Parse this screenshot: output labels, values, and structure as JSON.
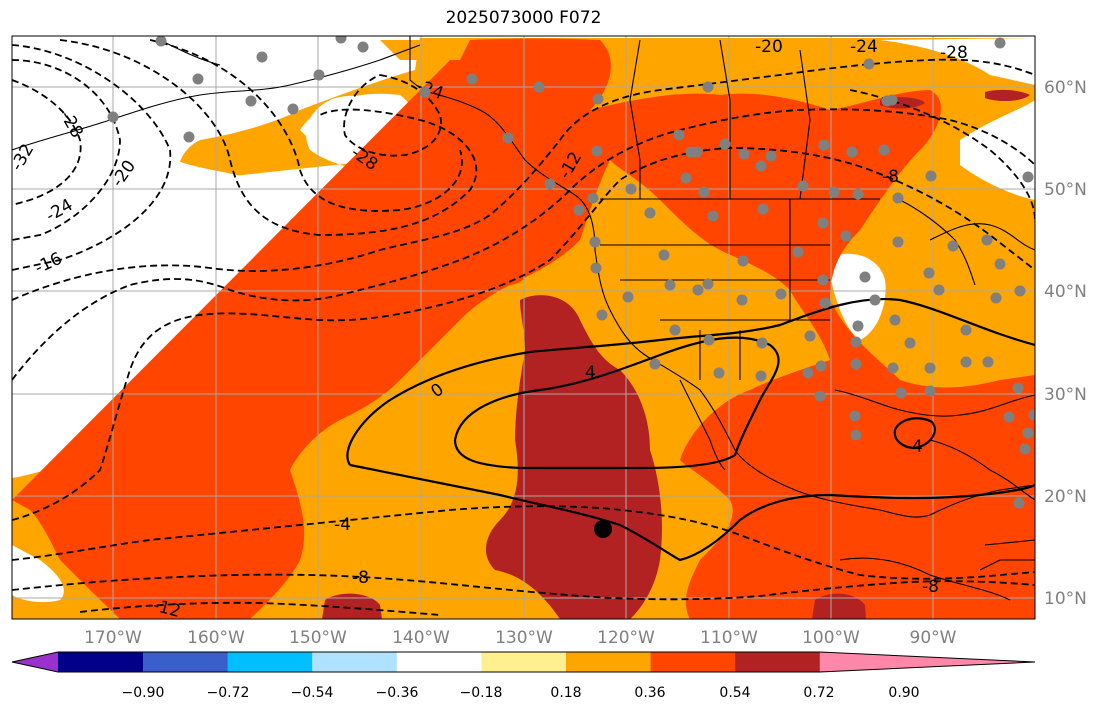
{
  "title": "2025073000 F072",
  "colors": {
    "ocean_bg": "#ffffff",
    "level_036_054": "#ffa500",
    "level_054_072": "#ff4500",
    "level_072_090": "#b22222",
    "grid": "#a9a9a9",
    "contour": "#000000",
    "station": "#808080",
    "marker": "#000000"
  },
  "axes": {
    "lon_ticks": [
      "170°W",
      "160°W",
      "150°W",
      "140°W",
      "130°W",
      "120°W",
      "110°W",
      "100°W",
      "90°W"
    ],
    "lat_ticks": [
      "60°N",
      "50°N",
      "40°N",
      "30°N",
      "20°N",
      "10°N"
    ]
  },
  "colorbar": {
    "colors": [
      "#9932cc",
      "#00008b",
      "#3a5fcd",
      "#00bfff",
      "#b0e2ff",
      "#ffffff",
      "#fff08f",
      "#ffa500",
      "#ff4500",
      "#b22222",
      "#ff88aa"
    ],
    "tick_labels": [
      "−0.90",
      "−0.72",
      "−0.54",
      "−0.36",
      "−0.18",
      "0.18",
      "0.36",
      "0.54",
      "0.72",
      "0.90"
    ]
  },
  "contour_labels": {
    "solid": [
      "0",
      "4",
      "4"
    ],
    "dashed": [
      "-28",
      "-32",
      "-20",
      "-24",
      "-16",
      "-28",
      "-24",
      "-20",
      "-24",
      "-28",
      "-12",
      "-4",
      "-8",
      "-12",
      "-8",
      "-8"
    ]
  },
  "icons": {
    "station": "gray-dot",
    "target": "black-dot"
  }
}
